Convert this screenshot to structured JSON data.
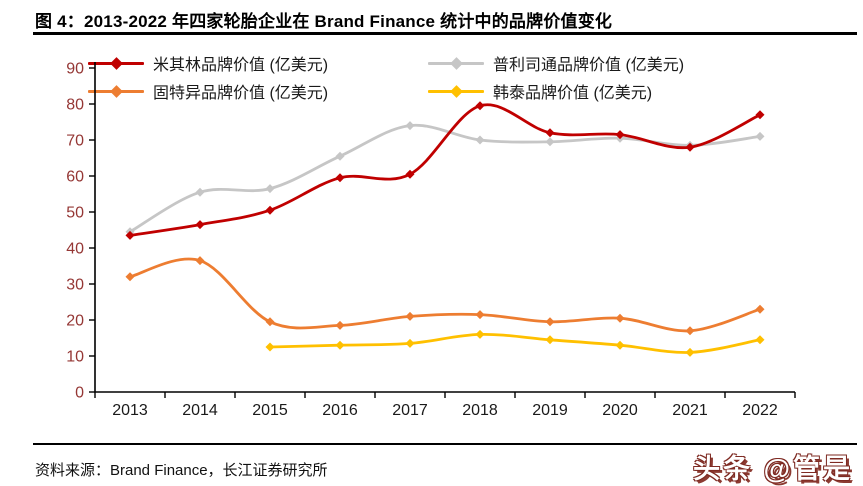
{
  "title": "图 4：2013-2022 年四家轮胎企业在 Brand Finance 统计中的品牌价值变化",
  "footer": {
    "source": "资料来源：Brand Finance，长江证券研究所",
    "watermark": "头条 @管是"
  },
  "colors": {
    "michelin": "#c00000",
    "bridgestone": "#c6c6c6",
    "goodyear": "#ed7d31",
    "hankook": "#ffc000",
    "y_axis_label": "#953735",
    "x_axis_label": "#1a1a1a",
    "axis_line": "#000000"
  },
  "chart_data": {
    "type": "line",
    "title": "图 4：2013-2022 年四家轮胎企业在 Brand Finance 统计中的品牌价值变化",
    "categories": [
      "2013",
      "2014",
      "2015",
      "2016",
      "2017",
      "2018",
      "2019",
      "2020",
      "2021",
      "2022"
    ],
    "series": [
      {
        "name": "米其林品牌价值 (亿美元)",
        "key": "michelin",
        "values": [
          43.5,
          46.5,
          50.5,
          59.5,
          60.5,
          79.5,
          72,
          71.5,
          68,
          77
        ]
      },
      {
        "name": "普利司通品牌价值 (亿美元)",
        "key": "bridgestone",
        "values": [
          44.5,
          55.5,
          56.5,
          65.5,
          74,
          70,
          69.5,
          70.5,
          68.5,
          71
        ]
      },
      {
        "name": "固特异品牌价值 (亿美元)",
        "key": "goodyear",
        "values": [
          32,
          36.5,
          19.5,
          18.5,
          21,
          21.5,
          19.5,
          20.5,
          17,
          23
        ]
      },
      {
        "name": "韩泰品牌价值 (亿美元)",
        "key": "hankook",
        "values": [
          null,
          null,
          12.5,
          13,
          13.5,
          16,
          14.5,
          13,
          11,
          14.5
        ]
      }
    ],
    "xlabel": "",
    "ylabel": "",
    "ylim": [
      0,
      90
    ],
    "ytick_step": 10,
    "grid": false,
    "legend_position": "top",
    "line_style": "smoothed",
    "marker": "diamond"
  }
}
